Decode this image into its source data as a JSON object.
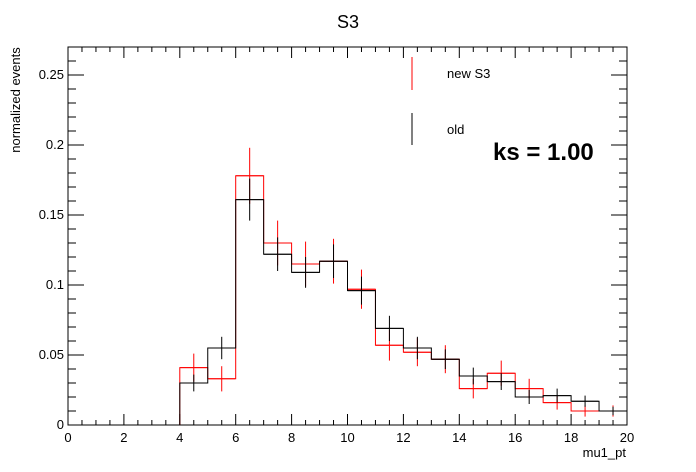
{
  "chart_data": {
    "type": "histogram",
    "title": "S3",
    "xlabel": "mu1_pt",
    "ylabel": "normalized events",
    "xlim": [
      0,
      20
    ],
    "ylim": [
      0,
      0.27
    ],
    "x_ticks": [
      "0",
      "2",
      "4",
      "6",
      "8",
      "10",
      "12",
      "14",
      "16",
      "18",
      "20"
    ],
    "y_ticks": [
      "0",
      "0.05",
      "0.1",
      "0.15",
      "0.2",
      "0.25"
    ],
    "bin_edges": [
      0,
      1,
      2,
      3,
      4,
      5,
      6,
      7,
      8,
      9,
      10,
      11,
      12,
      13,
      14,
      15,
      16,
      17,
      18,
      19,
      20
    ],
    "annotation": "ks = 1.00",
    "series": [
      {
        "name": "new S3",
        "color": "#ff0000",
        "values": [
          0,
          0,
          0,
          0,
          0.041,
          0.033,
          0.178,
          0.13,
          0.115,
          0.117,
          0.097,
          0.057,
          0.052,
          0.047,
          0.026,
          0.037,
          0.026,
          0.016,
          0.01,
          0.01
        ],
        "errors": [
          0,
          0,
          0,
          0,
          0.01,
          0.009,
          0.02,
          0.016,
          0.016,
          0.016,
          0.014,
          0.011,
          0.01,
          0.01,
          0.007,
          0.009,
          0.007,
          0.005,
          0.004,
          0.004
        ]
      },
      {
        "name": "old",
        "color": "#000000",
        "values": [
          0,
          0,
          0,
          0,
          0.03,
          0.055,
          0.161,
          0.122,
          0.109,
          0.117,
          0.096,
          0.069,
          0.055,
          0.047,
          0.035,
          0.031,
          0.02,
          0.021,
          0.017,
          0.01
        ],
        "errors": [
          0,
          0,
          0,
          0,
          0.006,
          0.008,
          0.015,
          0.012,
          0.011,
          0.012,
          0.01,
          0.009,
          0.008,
          0.007,
          0.006,
          0.006,
          0.005,
          0.005,
          0.004,
          0.003
        ]
      }
    ]
  }
}
